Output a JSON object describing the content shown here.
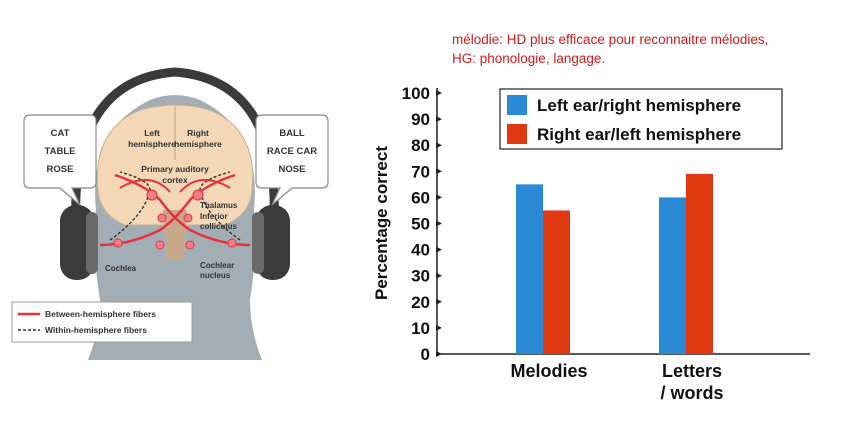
{
  "note": {
    "line1": "mélodie: HD plus efficace pour reconnaitre mélodies,",
    "line2": "HG: phonologie, langage."
  },
  "diagram": {
    "left_bubble": [
      "CAT",
      "TABLE",
      "ROSE"
    ],
    "right_bubble": [
      "BALL",
      "RACE CAR",
      "NOSE"
    ],
    "left_hemisphere": [
      "Left",
      "hemisphere"
    ],
    "right_hemisphere": [
      "Right",
      "hemisphere"
    ],
    "auditory_cortex": [
      "Primary auditory",
      "cortex"
    ],
    "thalamus": "Thalamus",
    "inferior_colliculus": [
      "Inferior",
      "colliculus"
    ],
    "cochlea": "Cochlea",
    "cochlear_nucleus": [
      "Cochlear",
      "nucleus"
    ],
    "legend_between": "Between-hemisphere fibers",
    "legend_within": "Within-hemisphere fibers",
    "colors": {
      "head": "#a3adb5",
      "brain": "#f3d7b6",
      "fiber": "#e8323a",
      "headphone": "#3b3b3b"
    }
  },
  "chart_data": {
    "type": "bar",
    "categories": [
      "Melodies",
      "Letters / words"
    ],
    "category_lines": [
      [
        "Melodies"
      ],
      [
        "Letters",
        "/ words"
      ]
    ],
    "series": [
      {
        "name": "Left ear/right hemisphere",
        "color": "#2b8ad6",
        "values": [
          65,
          60
        ]
      },
      {
        "name": "Right ear/left hemisphere",
        "color": "#e03810",
        "values": [
          55,
          69
        ]
      }
    ],
    "ylabel": "Percentage correct",
    "ylim": [
      0,
      100
    ],
    "yticks": [
      0,
      10,
      20,
      30,
      40,
      50,
      60,
      70,
      80,
      90,
      100
    ],
    "legend_position": "top-right",
    "grid": false
  }
}
